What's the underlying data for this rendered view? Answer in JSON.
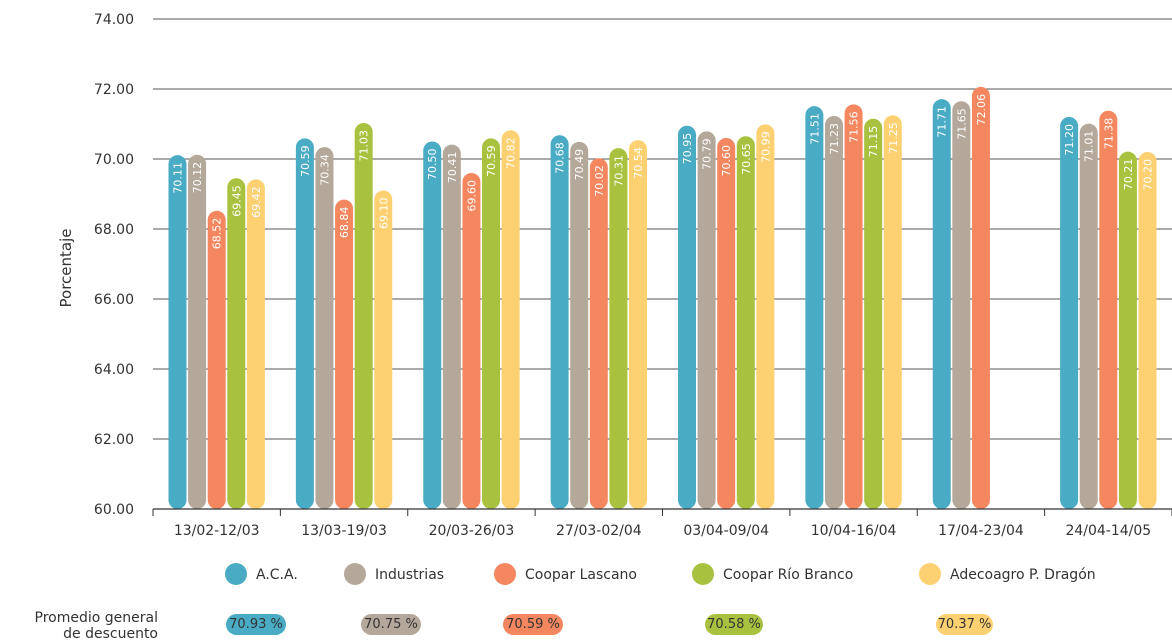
{
  "chart_data": {
    "type": "bar",
    "ylabel": "Porcentaje",
    "xlabel": "",
    "title": "",
    "ylim": [
      60,
      74
    ],
    "yticks": [
      "60.00",
      "62.00",
      "64.00",
      "66.00",
      "68.00",
      "70.00",
      "72.00",
      "74.00"
    ],
    "categories": [
      "13/02-12/03",
      "13/03-19/03",
      "20/03-26/03",
      "27/03-02/04",
      "03/04-09/04",
      "10/04-16/04",
      "17/04-23/04",
      "24/04-14/05"
    ],
    "series": [
      {
        "name": "A.C.A.",
        "color": "#4aabc4",
        "values": [
          70.11,
          70.59,
          70.5,
          70.68,
          70.95,
          71.51,
          71.71,
          71.2
        ],
        "labels": [
          "70.11",
          "70.59",
          "70.50",
          "70.68",
          "70.95",
          "71.51",
          "71.71",
          "71.20"
        ]
      },
      {
        "name": "Industrias",
        "color": "#b3a89a",
        "values": [
          70.12,
          70.34,
          70.41,
          70.49,
          70.79,
          71.23,
          71.65,
          71.01
        ],
        "labels": [
          "70.12",
          "70.34",
          "70.41",
          "70.49",
          "70.79",
          "71.23",
          "71.65",
          "71.01"
        ]
      },
      {
        "name": "Coopar Lascano",
        "color": "#f4875f",
        "values": [
          68.52,
          68.84,
          69.6,
          70.02,
          70.6,
          71.56,
          72.06,
          71.38
        ],
        "labels": [
          "68.52",
          "68.84",
          "69.60",
          "70.02",
          "70.60",
          "71.56",
          "72.06",
          "71.38"
        ]
      },
      {
        "name": "Coopar Río Branco",
        "color": "#a8c240",
        "values": [
          69.45,
          71.03,
          70.59,
          70.31,
          70.65,
          71.15,
          null,
          70.21
        ],
        "labels": [
          "69.45",
          "71.03",
          "70.59",
          "70.31",
          "70.65",
          "71.15",
          "",
          "70.21"
        ]
      },
      {
        "name": "Adecoagro P. Dragón",
        "color": "#fdd171",
        "values": [
          69.42,
          69.1,
          70.82,
          70.54,
          70.99,
          71.25,
          null,
          70.2
        ],
        "labels": [
          "69.42",
          "69.10",
          "70.82",
          "70.54",
          "70.99",
          "71.25",
          "",
          "70.20"
        ]
      }
    ],
    "averages": {
      "caption_line1": "Promedio general",
      "caption_line2": "de descuento",
      "values": [
        "70.93 %",
        "70.75 %",
        "70.59 %",
        "70.58 %",
        "70.37 %"
      ]
    }
  }
}
